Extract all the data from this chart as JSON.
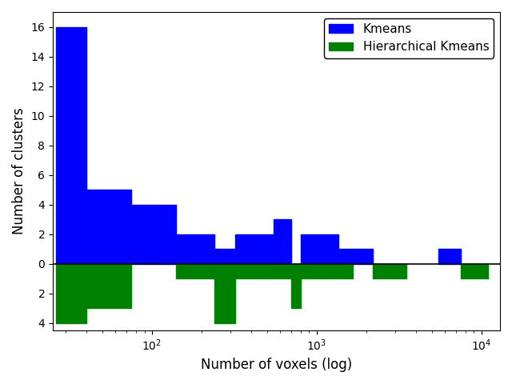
{
  "title": "",
  "xlabel": "Number of voxels (log)",
  "ylabel": "Number of clusters",
  "xscale": "log",
  "xlim": [
    25,
    13000
  ],
  "ylim": [
    -4.5,
    17
  ],
  "yticks": [
    -4,
    -2,
    0,
    2,
    4,
    6,
    8,
    10,
    12,
    14,
    16
  ],
  "hline_y": 0,
  "kmeans_color": "#0000ff",
  "hier_color": "#008000",
  "legend_labels": [
    "Kmeans",
    "Hierarchical Kmeans"
  ],
  "kmeans_bars": [
    {
      "x0": 26,
      "x1": 40,
      "height": 16
    },
    {
      "x0": 40,
      "x1": 75,
      "height": 5
    },
    {
      "x0": 75,
      "x1": 140,
      "height": 4
    },
    {
      "x0": 140,
      "x1": 240,
      "height": 2
    },
    {
      "x0": 240,
      "x1": 320,
      "height": 1
    },
    {
      "x0": 320,
      "x1": 550,
      "height": 2
    },
    {
      "x0": 550,
      "x1": 700,
      "height": 3
    },
    {
      "x0": 700,
      "x1": 800,
      "height": 0
    },
    {
      "x0": 800,
      "x1": 1050,
      "height": 2
    },
    {
      "x0": 1050,
      "x1": 1350,
      "height": 2
    },
    {
      "x0": 1350,
      "x1": 1650,
      "height": 1
    },
    {
      "x0": 1650,
      "x1": 2200,
      "height": 1
    },
    {
      "x0": 2200,
      "x1": 5500,
      "height": 0
    },
    {
      "x0": 5500,
      "x1": 7500,
      "height": 1
    },
    {
      "x0": 7500,
      "x1": 11000,
      "height": 0
    }
  ],
  "hier_bars": [
    {
      "x0": 26,
      "x1": 40,
      "height": -4
    },
    {
      "x0": 40,
      "x1": 75,
      "height": -3
    },
    {
      "x0": 75,
      "x1": 140,
      "height": 0
    },
    {
      "x0": 140,
      "x1": 240,
      "height": -1
    },
    {
      "x0": 240,
      "x1": 320,
      "height": -4
    },
    {
      "x0": 320,
      "x1": 550,
      "height": -1
    },
    {
      "x0": 550,
      "x1": 700,
      "height": -1
    },
    {
      "x0": 700,
      "x1": 800,
      "height": -3
    },
    {
      "x0": 800,
      "x1": 1050,
      "height": -1
    },
    {
      "x0": 1050,
      "x1": 1350,
      "height": -1
    },
    {
      "x0": 1350,
      "x1": 1650,
      "height": -1
    },
    {
      "x0": 1650,
      "x1": 2200,
      "height": 0
    },
    {
      "x0": 2200,
      "x1": 3500,
      "height": -1
    },
    {
      "x0": 3500,
      "x1": 5500,
      "height": 0
    },
    {
      "x0": 5500,
      "x1": 7500,
      "height": 0
    },
    {
      "x0": 7500,
      "x1": 11000,
      "height": -1
    }
  ],
  "figsize": [
    6.4,
    4.8
  ],
  "dpi": 100
}
